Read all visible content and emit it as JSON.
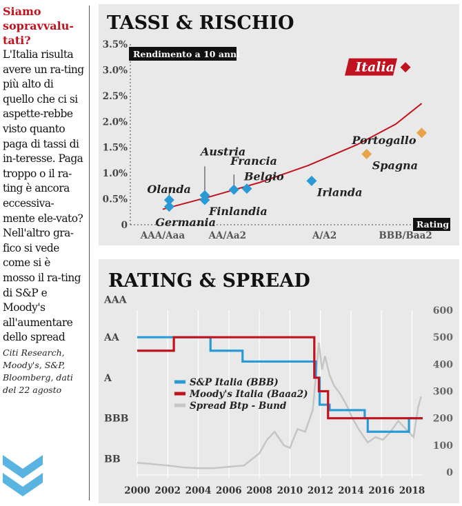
{
  "sidebar": {
    "headline": "Siamo sopravvalu-tati?",
    "body": "L'Italia risulta avere un ra-ting più alto di quello che ci si aspette-rebbe visto quanto paga di tassi di in-teresse. Paga troppo o il ra-ting è ancora eccessiva-mente ele-vato? Nell'altro gra-fico si vede come si è mosso il ra-ting di S&P e Moody's all'aumentare dello spread",
    "source": "Citi Research, Moody's, S&P, Bloomberg, dati del 22 agosto",
    "icon": "double-chevron-down-icon"
  },
  "colors": {
    "red": "#c1121f",
    "blue": "#2a9ad6",
    "orange": "#e9a349",
    "grey_line": "#c5c5c5",
    "panel_bg": "#e9e9e9"
  },
  "chart_data": [
    {
      "type": "scatter",
      "title": "TASSI & RISCHIO",
      "subtitle": "Rendimento a 10 anni",
      "xlabel": "Rating",
      "ylabel": "",
      "ylim": [
        0,
        3.5
      ],
      "y_ticks": [
        "0",
        "0.5%",
        "1.0%",
        "1.5%",
        "2.0%",
        "2.5%",
        "3.0%",
        "3.5%"
      ],
      "x_categories": [
        "AAA/Aaa",
        "AA/Aa2",
        "A/A2",
        "BBB/Baa2"
      ],
      "xlim": [
        0,
        9.5
      ],
      "x_category_positions": [
        1,
        3,
        6,
        8.5
      ],
      "points": [
        {
          "label": "Olanda",
          "x": 1.2,
          "y": 0.48,
          "color": "blue"
        },
        {
          "label": "Germania",
          "x": 1.2,
          "y": 0.35,
          "color": "blue"
        },
        {
          "label": "Austria",
          "x": 2.3,
          "y": 0.57,
          "color": "blue"
        },
        {
          "label": "Finlandia",
          "x": 2.3,
          "y": 0.48,
          "color": "blue"
        },
        {
          "label": "Francia",
          "x": 3.2,
          "y": 0.68,
          "color": "blue"
        },
        {
          "label": "Belgio",
          "x": 3.6,
          "y": 0.7,
          "color": "blue"
        },
        {
          "label": "Irlanda",
          "x": 5.6,
          "y": 0.85,
          "color": "blue"
        },
        {
          "label": "Spagna",
          "x": 7.3,
          "y": 1.37,
          "color": "orange"
        },
        {
          "label": "Portogallo",
          "x": 9.0,
          "y": 1.78,
          "color": "orange"
        },
        {
          "label": "Italia",
          "x": 8.5,
          "y": 3.05,
          "color": "red"
        }
      ],
      "trend": [
        [
          1.0,
          0.3
        ],
        [
          2.5,
          0.55
        ],
        [
          4.0,
          0.82
        ],
        [
          5.5,
          1.15
        ],
        [
          7.0,
          1.55
        ],
        [
          8.2,
          1.95
        ],
        [
          9.0,
          2.35
        ]
      ]
    },
    {
      "type": "line",
      "title": "RATING & SPREAD",
      "xlim": [
        2000,
        2018.7
      ],
      "x_ticks": [
        "2000",
        "2002",
        "2004",
        "2006",
        "2008",
        "2010",
        "2012",
        "2014",
        "2016",
        "2018"
      ],
      "y_left_categories": [
        "BB",
        "BBB",
        "A",
        "AA",
        "AAA"
      ],
      "y_right_ticks": [
        "0",
        "100",
        "200",
        "300",
        "400",
        "500",
        "600"
      ],
      "y_right_lim": [
        0,
        600
      ],
      "legend_position": "center-left",
      "series": [
        {
          "name": "S&P Italia (BBB)",
          "color": "blue",
          "axis": "rating",
          "steps": [
            [
              2000,
              500
            ],
            [
              2002.3,
              500
            ],
            [
              2004.8,
              450
            ],
            [
              2006.9,
              410
            ],
            [
              2011.7,
              350
            ],
            [
              2011.95,
              250
            ],
            [
              2012.6,
              230
            ],
            [
              2014.9,
              200
            ],
            [
              2015.1,
              150
            ],
            [
              2017.8,
              200
            ],
            [
              2018.7,
              200
            ]
          ]
        },
        {
          "name": "Moody's Italia (Baaa2)",
          "color": "red",
          "axis": "rating",
          "steps": [
            [
              2000,
              450
            ],
            [
              2002.4,
              500
            ],
            [
              2011.6,
              350
            ],
            [
              2011.9,
              300
            ],
            [
              2012.5,
              200
            ],
            [
              2018.7,
              200
            ]
          ]
        },
        {
          "name": "Spread Btp - Bund",
          "color": "grey_line",
          "axis": "spread",
          "points": [
            [
              2000,
              35
            ],
            [
              2001,
              30
            ],
            [
              2002,
              25
            ],
            [
              2003,
              18
            ],
            [
              2004,
              15
            ],
            [
              2005,
              15
            ],
            [
              2006,
              20
            ],
            [
              2007,
              25
            ],
            [
              2008,
              70
            ],
            [
              2008.5,
              120
            ],
            [
              2009,
              150
            ],
            [
              2009.6,
              100
            ],
            [
              2010,
              90
            ],
            [
              2010.5,
              160
            ],
            [
              2011,
              150
            ],
            [
              2011.5,
              230
            ],
            [
              2011.9,
              480
            ],
            [
              2012.1,
              380
            ],
            [
              2012.3,
              430
            ],
            [
              2012.6,
              360
            ],
            [
              2012.9,
              320
            ],
            [
              2013.3,
              290
            ],
            [
              2013.7,
              250
            ],
            [
              2014.1,
              200
            ],
            [
              2014.5,
              160
            ],
            [
              2015.1,
              110
            ],
            [
              2015.6,
              130
            ],
            [
              2016.1,
              120
            ],
            [
              2016.6,
              150
            ],
            [
              2017.1,
              190
            ],
            [
              2017.6,
              160
            ],
            [
              2018.1,
              130
            ],
            [
              2018.4,
              240
            ],
            [
              2018.6,
              280
            ]
          ]
        }
      ]
    }
  ]
}
